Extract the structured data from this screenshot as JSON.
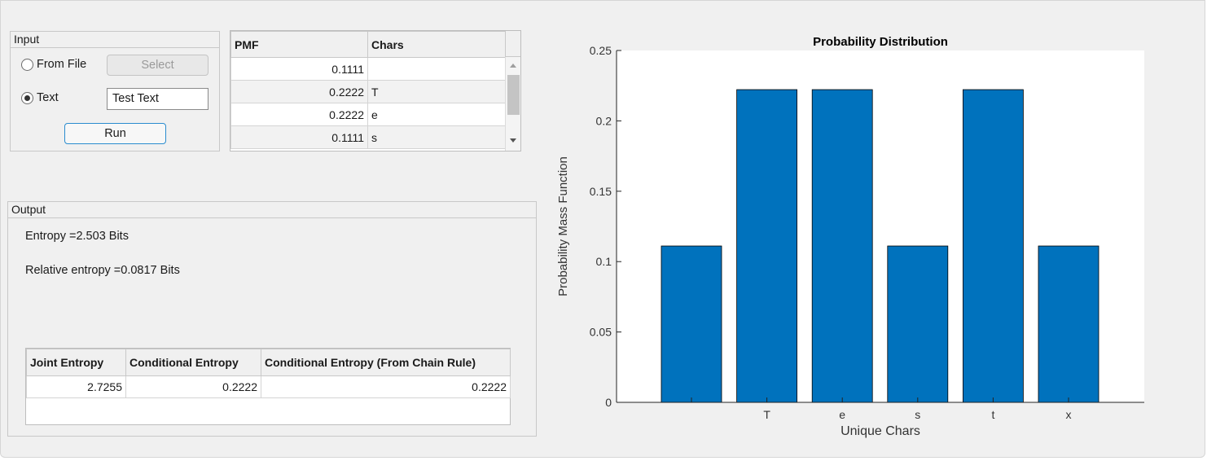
{
  "input_panel": {
    "title": "Input",
    "from_file_label": "From File",
    "select_label": "Select",
    "text_label": "Text",
    "text_value": "Test Text",
    "run_label": "Run"
  },
  "pmf_table": {
    "headers": [
      "PMF",
      "Chars"
    ],
    "rows": [
      {
        "pmf": "0.1111",
        "char": ""
      },
      {
        "pmf": "0.2222",
        "char": "T"
      },
      {
        "pmf": "0.2222",
        "char": "e"
      },
      {
        "pmf": "0.1111",
        "char": "s"
      }
    ]
  },
  "output_panel": {
    "title": "Output",
    "entropy_text": "Entropy =2.503 Bits",
    "relative_entropy_text": "Relative entropy =0.0817 Bits",
    "table": {
      "headers": [
        "Joint Entropy",
        "Conditional Entropy",
        "Conditional Entropy (From Chain Rule)"
      ],
      "row": [
        "2.7255",
        "0.2222",
        "0.2222"
      ]
    }
  },
  "chart_data": {
    "type": "bar",
    "title": "Probability Distribution",
    "xlabel": "Unique Chars",
    "ylabel": "Probability Mass Function",
    "categories": [
      " ",
      "T",
      "e",
      "s",
      "t",
      "x"
    ],
    "values": [
      0.1111,
      0.2222,
      0.2222,
      0.1111,
      0.2222,
      0.1111
    ],
    "ylim": [
      0,
      0.25
    ],
    "yticks": [
      "0",
      "0.05",
      "0.1",
      "0.15",
      "0.2",
      "0.25"
    ],
    "bar_color": "#0072BD",
    "grid": false
  }
}
